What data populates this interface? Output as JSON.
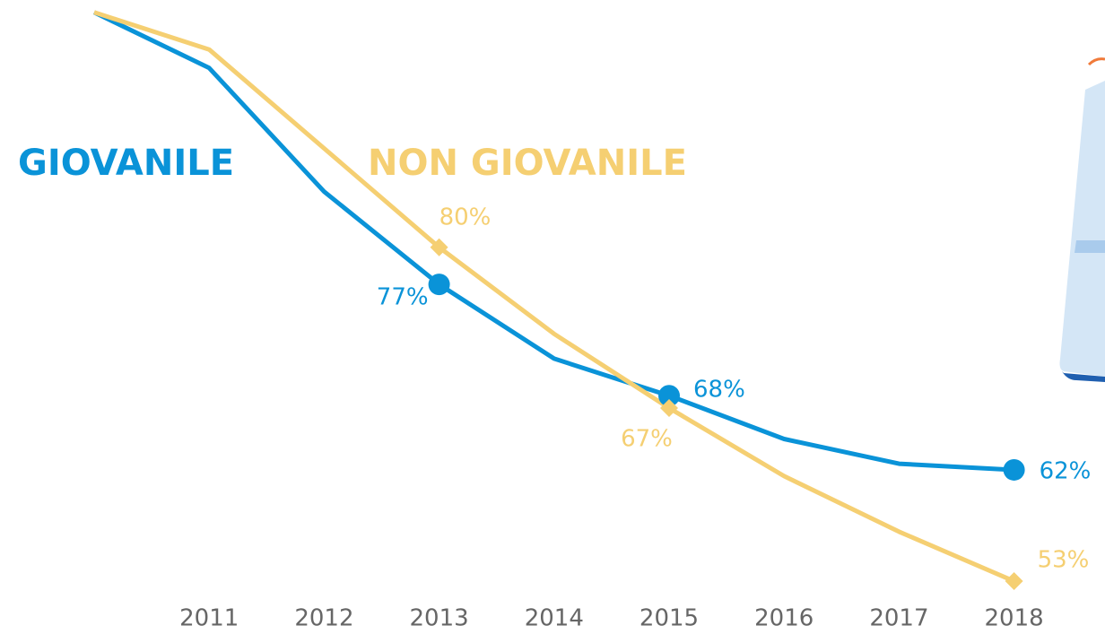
{
  "chart_data": {
    "type": "line",
    "categories": [
      null,
      "2011",
      "2012",
      "2013",
      "2014",
      "2015",
      "2016",
      "2017",
      "2018"
    ],
    "series": [
      {
        "name": "GIOVANILE",
        "color": "#0a93d8",
        "marker": "circle",
        "values": [
          99,
          94.5,
          84.5,
          77,
          71,
          68,
          64.5,
          62.5,
          62
        ],
        "value_labels": [
          null,
          null,
          null,
          "77%",
          null,
          "68%",
          null,
          null,
          "62%"
        ]
      },
      {
        "name": "NON GIOVANILE",
        "color": "#f5cf72",
        "marker": "diamond",
        "values": [
          99,
          96,
          88,
          80,
          73,
          67,
          61.5,
          57,
          53
        ],
        "value_labels": [
          null,
          null,
          null,
          "80%",
          null,
          "67%",
          null,
          null,
          "53%"
        ]
      }
    ],
    "ylim": [
      48,
      100
    ]
  }
}
